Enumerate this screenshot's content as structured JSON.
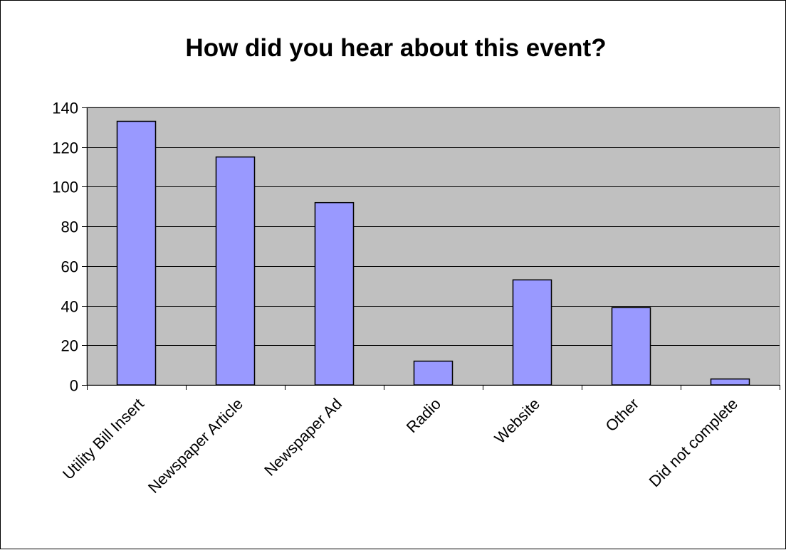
{
  "chart_data": {
    "type": "bar",
    "title": "How did you hear about this event?",
    "xlabel": "",
    "ylabel": "",
    "categories": [
      "Utility Bill Insert",
      "Newspaper Article",
      "Newspaper Ad",
      "Radio",
      "Website",
      "Other",
      "Did not complete"
    ],
    "values": [
      133,
      115,
      92,
      12,
      53,
      39,
      3
    ],
    "ylim": [
      0,
      140
    ],
    "yticks": [
      0,
      20,
      40,
      60,
      80,
      100,
      120,
      140
    ],
    "grid": true,
    "legend": "none",
    "colors": {
      "bar_fill": "#9999FF",
      "bar_stroke": "#000000",
      "plot_background": "#C0C0C0",
      "gridline": "#000000"
    }
  }
}
